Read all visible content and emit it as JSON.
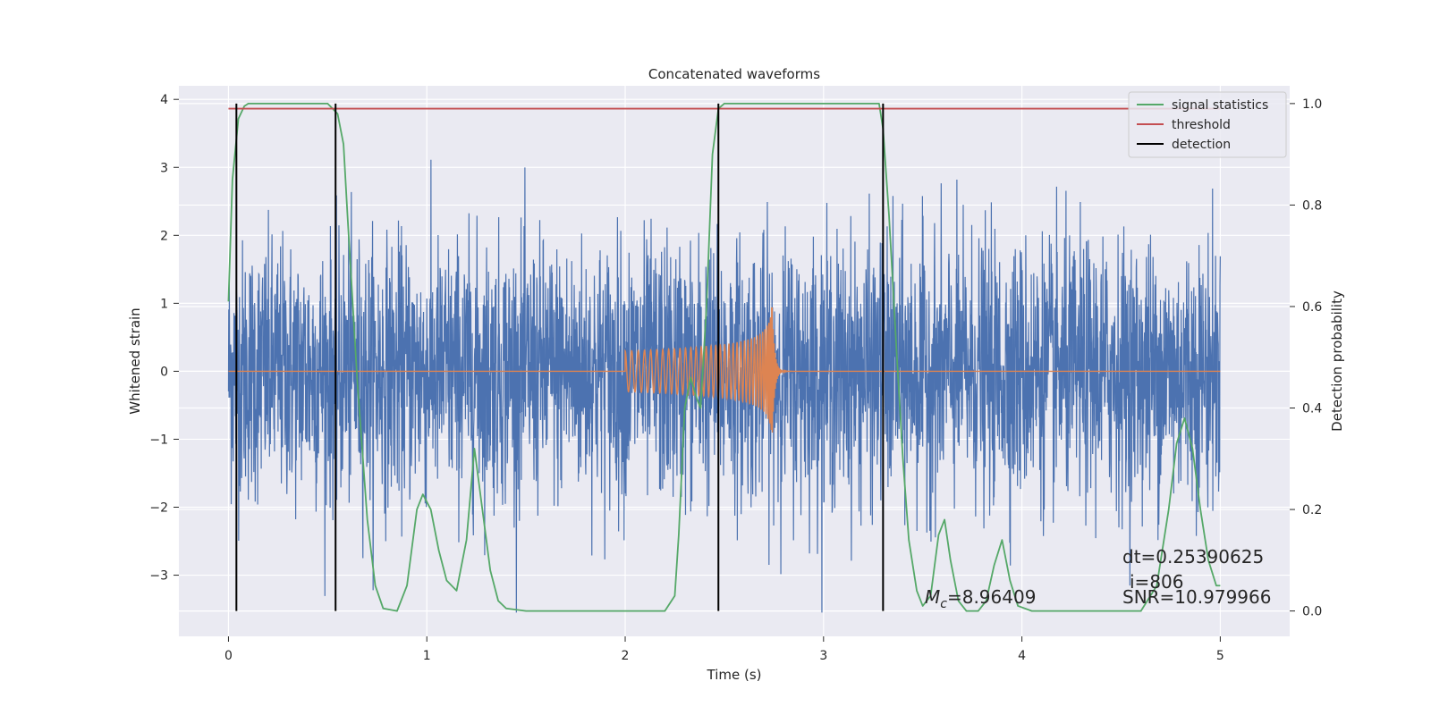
{
  "chart_data": {
    "type": "line",
    "title": "Concatenated waveforms",
    "xlabel": "Time (s)",
    "ylabel": "Whitened strain",
    "y2label": "Detection probability",
    "xlim": [
      -0.25,
      5.35
    ],
    "ylim": [
      -3.9,
      4.2
    ],
    "y2lim": [
      -0.05,
      1.035
    ],
    "xticks": [
      0,
      1,
      2,
      3,
      4,
      5
    ],
    "yticks": [
      -3,
      -2,
      -1,
      0,
      1,
      2,
      3,
      4
    ],
    "y2ticks": [
      0.0,
      0.2,
      0.4,
      0.6,
      0.8,
      1.0
    ],
    "grid": true,
    "legend_position": "top-right",
    "colors": {
      "noise": "#4c72b0",
      "template": "#dd8452",
      "signal_statistics": "#55a868",
      "threshold": "#c44e52",
      "detection": "#000000",
      "axes_bg": "#eaeaf2"
    },
    "series": [
      {
        "name": "signal statistics",
        "axis": "right",
        "x": [
          0.0,
          0.02,
          0.05,
          0.08,
          0.1,
          0.2,
          0.5,
          0.55,
          0.58,
          0.6,
          0.65,
          0.7,
          0.74,
          0.78,
          0.85,
          0.9,
          0.95,
          0.98,
          1.02,
          1.06,
          1.1,
          1.15,
          1.2,
          1.24,
          1.28,
          1.32,
          1.36,
          1.4,
          1.5,
          2.0,
          2.2,
          2.25,
          2.27,
          2.3,
          2.33,
          2.36,
          2.38,
          2.41,
          2.44,
          2.47,
          2.5,
          2.6,
          3.28,
          3.3,
          3.33,
          3.37,
          3.4,
          3.43,
          3.47,
          3.5,
          3.54,
          3.58,
          3.61,
          3.64,
          3.68,
          3.72,
          3.78,
          3.82,
          3.86,
          3.9,
          3.94,
          3.98,
          4.05,
          4.6,
          4.68,
          4.74,
          4.78,
          4.82,
          4.86,
          4.9,
          4.94,
          4.98,
          5.0
        ],
        "y": [
          0.61,
          0.85,
          0.97,
          0.995,
          1.0,
          1.0,
          1.0,
          0.98,
          0.92,
          0.78,
          0.45,
          0.18,
          0.05,
          0.005,
          0.0,
          0.05,
          0.2,
          0.23,
          0.2,
          0.12,
          0.06,
          0.04,
          0.14,
          0.32,
          0.2,
          0.08,
          0.02,
          0.005,
          0.0,
          0.0,
          0.0,
          0.03,
          0.15,
          0.4,
          0.46,
          0.42,
          0.4,
          0.6,
          0.9,
          0.99,
          1.0,
          1.0,
          1.0,
          0.95,
          0.78,
          0.5,
          0.3,
          0.14,
          0.04,
          0.01,
          0.03,
          0.15,
          0.18,
          0.1,
          0.02,
          0.0,
          0.0,
          0.02,
          0.09,
          0.14,
          0.06,
          0.01,
          0.0,
          0.0,
          0.05,
          0.2,
          0.33,
          0.38,
          0.32,
          0.2,
          0.1,
          0.05,
          0.05
        ]
      },
      {
        "name": "threshold",
        "axis": "right",
        "x": [
          0.0,
          5.0
        ],
        "y": [
          0.99,
          0.99
        ]
      },
      {
        "name": "detection",
        "axis": "right",
        "x": [
          0.04,
          0.54,
          2.47,
          3.3
        ],
        "y_range": [
          0.0,
          1.0
        ]
      }
    ],
    "annotations": [
      {
        "text": "dt=0.25390625",
        "x": 4.5,
        "y": -3.2
      },
      {
        "text": "i=806",
        "x": 4.5,
        "y": -3.55
      },
      {
        "text": "SNR=10.979966",
        "x": 4.5,
        "y": -3.9
      },
      {
        "prefix": "M",
        "sub": "c",
        "text": "=8.96409",
        "x": 3.5,
        "y": -3.9
      }
    ]
  }
}
